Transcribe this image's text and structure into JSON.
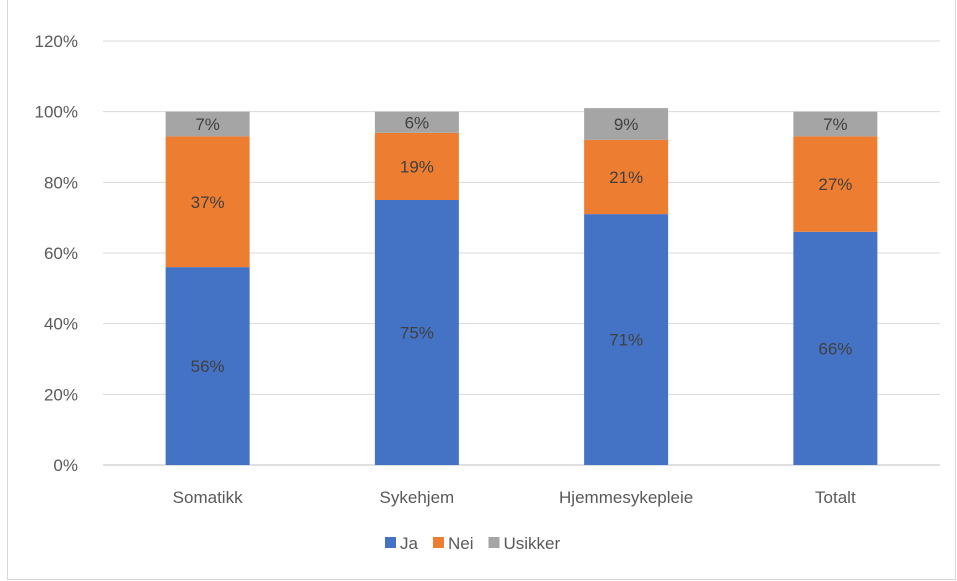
{
  "chart_data": {
    "type": "bar",
    "stacked": true,
    "categories": [
      "Somatikk",
      "Sykehjem",
      "Hjemmesykepleie",
      "Totalt"
    ],
    "series": [
      {
        "name": "Ja",
        "color": "#4472c4",
        "values": [
          56,
          75,
          71,
          66
        ],
        "labels": [
          "56%",
          "75%",
          "71%",
          "66%"
        ]
      },
      {
        "name": "Nei",
        "color": "#ed7d31",
        "values": [
          37,
          19,
          21,
          27
        ],
        "labels": [
          "37%",
          "19%",
          "21%",
          "27%"
        ]
      },
      {
        "name": "Usikker",
        "color": "#a5a5a5",
        "values": [
          7,
          6,
          9,
          7
        ],
        "labels": [
          "7%",
          "6%",
          "9%",
          "7%"
        ]
      }
    ],
    "ylim": [
      0,
      120
    ],
    "yticks": [
      0,
      20,
      40,
      60,
      80,
      100,
      120
    ],
    "ytick_labels": [
      "0%",
      "20%",
      "40%",
      "60%",
      "80%",
      "100%",
      "120%"
    ],
    "grid": true,
    "legend_position": "bottom"
  }
}
